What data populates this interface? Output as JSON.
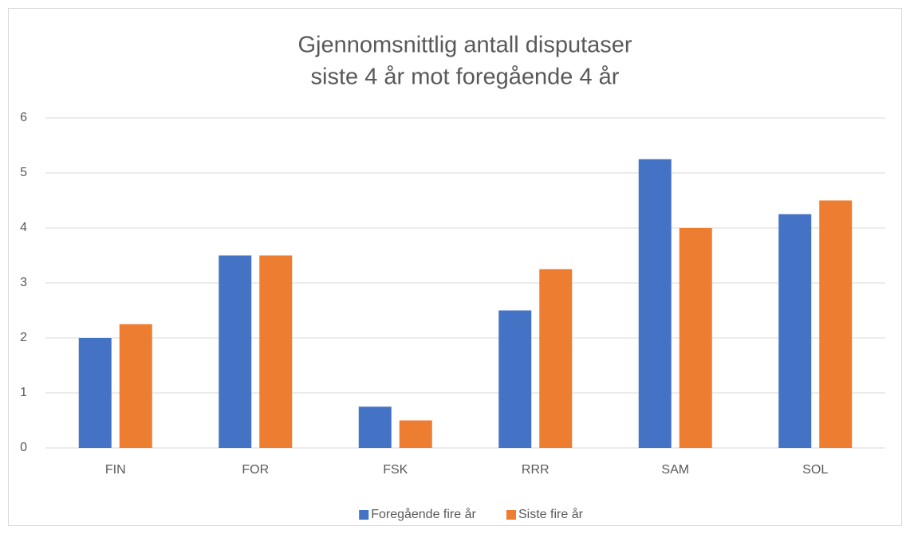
{
  "chart_data": {
    "type": "bar",
    "title": [
      "Gjennomsnittlig antall disputaser",
      "siste 4 år mot foregående 4 år"
    ],
    "categories": [
      "FIN",
      "FOR",
      "FSK",
      "RRR",
      "SAM",
      "SOL"
    ],
    "series": [
      {
        "name": "Foregående fire år",
        "color": "#4472c4",
        "values": [
          2,
          3.5,
          0.75,
          2.5,
          5.25,
          4.25
        ]
      },
      {
        "name": "Siste fire år",
        "color": "#ed7d31",
        "values": [
          2.25,
          3.5,
          0.5,
          3.25,
          4,
          4.5
        ]
      }
    ],
    "ylim": [
      0,
      6
    ],
    "yticks": [
      0,
      1,
      2,
      3,
      4,
      5,
      6
    ],
    "grid": true,
    "legend": "bottom"
  }
}
